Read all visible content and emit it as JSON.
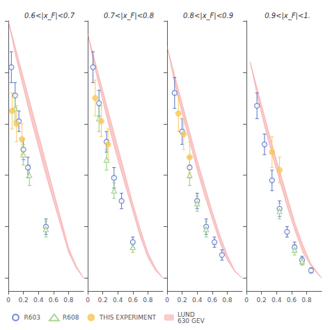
{
  "chart_data": [
    {
      "type": "scatter",
      "title": "0.6<|x_F|<0.7",
      "xlim": [
        0.0,
        1.0
      ],
      "ylim": [
        -0.05,
        1.0
      ],
      "xticks": [
        0,
        0.2,
        0.4,
        0.6,
        0.8
      ],
      "yticks": [
        0,
        0.2,
        0.4,
        0.6,
        0.8,
        1.0
      ],
      "tick_labels": "x",
      "grid": false,
      "legend": "lower left",
      "series": [
        {
          "name": "R603",
          "type": "scatter",
          "marker": "open circle",
          "x": [
            0.04,
            0.09,
            0.14,
            0.2,
            0.26,
            0.5
          ],
          "values": [
            0.82,
            0.71,
            0.61,
            0.5,
            0.43,
            0.2
          ],
          "errors": [
            0.06,
            0.05,
            0.04,
            0.04,
            0.04,
            0.03
          ]
        },
        {
          "name": "R608",
          "type": "scatter",
          "marker": "open triangle",
          "x": [
            0.09,
            0.2,
            0.28,
            0.5
          ],
          "values": [
            0.66,
            0.48,
            0.4,
            0.19
          ],
          "errors": [
            0.05,
            0.04,
            0.04,
            0.03
          ]
        },
        {
          "name": "THIS EXPERIMENT",
          "type": "scatter",
          "marker": "filled circle",
          "x": [
            0.05,
            0.11,
            0.18
          ],
          "values": [
            0.65,
            0.6,
            0.54
          ],
          "errors": [
            0.07,
            0.07,
            0.06
          ]
        },
        {
          "name": "LUND\n630 GEV",
          "type": "band",
          "x": [
            0.0,
            0.1,
            0.2,
            0.3,
            0.4,
            0.5,
            0.6,
            0.7,
            0.8,
            0.9,
            1.0
          ],
          "upper": [
            1.0,
            0.89,
            0.78,
            0.67,
            0.56,
            0.45,
            0.34,
            0.23,
            0.12,
            0.05,
            0.0
          ],
          "lower": [
            1.0,
            0.86,
            0.74,
            0.62,
            0.51,
            0.4,
            0.3,
            0.2,
            0.1,
            0.04,
            0.0
          ]
        }
      ]
    },
    {
      "type": "scatter",
      "title": "0.7<|x_F|<0.8",
      "xlim": [
        0.0,
        1.0
      ],
      "ylim": [
        -0.05,
        1.0
      ],
      "xticks": [
        0,
        0.2,
        0.4,
        0.6,
        0.8
      ],
      "yticks": [
        0,
        0.2,
        0.4,
        0.6,
        0.8,
        1.0
      ],
      "tick_labels": "x",
      "grid": false,
      "series": [
        {
          "name": "R603",
          "type": "scatter",
          "marker": "open circle",
          "x": [
            0.07,
            0.15,
            0.25,
            0.35,
            0.45,
            0.6
          ],
          "values": [
            0.82,
            0.68,
            0.53,
            0.39,
            0.3,
            0.14
          ],
          "errors": [
            0.06,
            0.05,
            0.04,
            0.04,
            0.03,
            0.02
          ]
        },
        {
          "name": "R608",
          "type": "scatter",
          "marker": "open triangle",
          "x": [
            0.15,
            0.25,
            0.35,
            0.6
          ],
          "values": [
            0.62,
            0.46,
            0.34,
            0.12
          ],
          "errors": [
            0.05,
            0.04,
            0.03,
            0.02
          ]
        },
        {
          "name": "THIS EXPERIMENT",
          "type": "scatter",
          "marker": "filled circle",
          "x": [
            0.1,
            0.18,
            0.27
          ],
          "values": [
            0.7,
            0.61,
            0.52
          ],
          "errors": [
            0.07,
            0.06,
            0.06
          ]
        },
        {
          "name": "LUND\n630 GEV",
          "type": "band",
          "x": [
            0.0,
            0.1,
            0.2,
            0.3,
            0.4,
            0.5,
            0.6,
            0.7,
            0.8,
            0.9,
            1.0
          ],
          "upper": [
            0.95,
            0.84,
            0.73,
            0.62,
            0.51,
            0.4,
            0.29,
            0.19,
            0.1,
            0.04,
            0.0
          ],
          "lower": [
            0.95,
            0.81,
            0.69,
            0.57,
            0.46,
            0.36,
            0.26,
            0.16,
            0.08,
            0.03,
            0.0
          ]
        }
      ]
    },
    {
      "type": "scatter",
      "title": "0.8<|x_F|<0.9",
      "xlim": [
        0.0,
        1.0
      ],
      "ylim": [
        -0.05,
        1.0
      ],
      "xticks": [
        0,
        0.2,
        0.4,
        0.6,
        0.8
      ],
      "yticks": [
        0,
        0.2,
        0.4,
        0.6,
        0.8,
        1.0
      ],
      "tick_labels": "x",
      "grid": false,
      "series": [
        {
          "name": "R603",
          "type": "scatter",
          "marker": "open circle",
          "x": [
            0.1,
            0.2,
            0.3,
            0.4,
            0.52,
            0.63,
            0.73
          ],
          "values": [
            0.72,
            0.57,
            0.43,
            0.3,
            0.2,
            0.14,
            0.09
          ],
          "errors": [
            0.06,
            0.05,
            0.04,
            0.03,
            0.03,
            0.02,
            0.02
          ]
        },
        {
          "name": "R608",
          "type": "scatter",
          "marker": "open triangle",
          "x": [
            0.3,
            0.4,
            0.52
          ],
          "values": [
            0.4,
            0.29,
            0.19
          ],
          "errors": [
            0.04,
            0.03,
            0.03
          ]
        },
        {
          "name": "THIS EXPERIMENT",
          "type": "scatter",
          "marker": "filled circle",
          "x": [
            0.15,
            0.22,
            0.3
          ],
          "values": [
            0.64,
            0.56,
            0.47
          ],
          "errors": [
            0.07,
            0.06,
            0.06
          ]
        },
        {
          "name": "LUND\n630 GEV",
          "type": "band",
          "x": [
            0.0,
            0.1,
            0.2,
            0.3,
            0.4,
            0.5,
            0.6,
            0.7,
            0.8,
            0.9,
            1.0
          ],
          "upper": [
            0.9,
            0.79,
            0.68,
            0.57,
            0.46,
            0.36,
            0.26,
            0.17,
            0.09,
            0.03,
            0.0
          ],
          "lower": [
            0.9,
            0.76,
            0.64,
            0.53,
            0.42,
            0.32,
            0.23,
            0.14,
            0.07,
            0.025,
            0.0
          ]
        }
      ]
    },
    {
      "type": "scatter",
      "title": "0.9<|x_F|<1.",
      "xlim": [
        0.0,
        1.0
      ],
      "ylim": [
        -0.05,
        1.0
      ],
      "xticks": [
        0,
        0.2,
        0.4,
        0.6,
        0.8
      ],
      "yticks": [
        0,
        0.2,
        0.4,
        0.6,
        0.8,
        1.0
      ],
      "tick_labels": "x",
      "grid": false,
      "series": [
        {
          "name": "R603",
          "type": "scatter",
          "marker": "open circle",
          "x": [
            0.14,
            0.24,
            0.34,
            0.44,
            0.54,
            0.64,
            0.74,
            0.86
          ],
          "values": [
            0.67,
            0.52,
            0.38,
            0.27,
            0.18,
            0.12,
            0.07,
            0.03
          ],
          "errors": [
            0.05,
            0.04,
            0.04,
            0.03,
            0.02,
            0.02,
            0.015,
            0.01
          ]
        },
        {
          "name": "R608",
          "type": "scatter",
          "marker": "open triangle",
          "x": [
            0.44,
            0.64,
            0.74
          ],
          "values": [
            0.26,
            0.11,
            0.065
          ],
          "errors": [
            0.03,
            0.02,
            0.015
          ]
        },
        {
          "name": "THIS EXPERIMENT",
          "type": "scatter",
          "marker": "filled circle",
          "x": [
            0.34,
            0.44
          ],
          "values": [
            0.49,
            0.42
          ],
          "errors": [
            0.06,
            0.05
          ]
        },
        {
          "name": "LUND\n630 GEV",
          "type": "band",
          "x": [
            0.05,
            0.15,
            0.25,
            0.35,
            0.45,
            0.55,
            0.65,
            0.75,
            0.85,
            0.95,
            1.0
          ],
          "upper": [
            0.84,
            0.73,
            0.62,
            0.51,
            0.41,
            0.31,
            0.21,
            0.13,
            0.06,
            0.02,
            0.0
          ],
          "lower": [
            0.84,
            0.7,
            0.58,
            0.47,
            0.37,
            0.27,
            0.18,
            0.1,
            0.05,
            0.015,
            0.0
          ]
        }
      ]
    }
  ]
}
